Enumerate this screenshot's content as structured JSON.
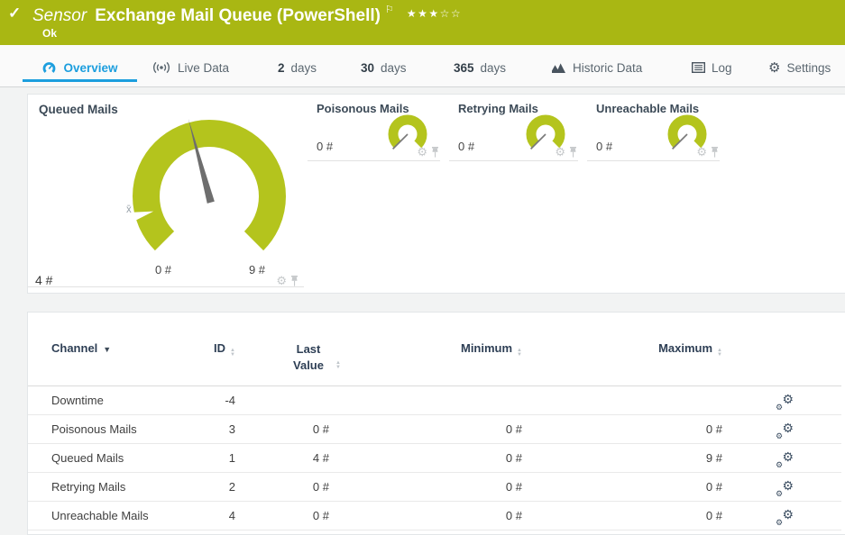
{
  "colors": {
    "brand_green": "#a9b713",
    "gauge_green": "#b4c41d",
    "active_blue": "#1c9ede",
    "header_navy": "#2e3f55"
  },
  "topbar": {
    "check_icon": "✓",
    "kind": "Sensor",
    "title": "Exchange Mail Queue (PowerShell)",
    "flag_icon": "⚐",
    "stars_filled": "★★★",
    "stars_empty": "☆☆",
    "status": "Ok"
  },
  "tabs": {
    "overview": {
      "label": "Overview"
    },
    "live": {
      "label": "Live Data"
    },
    "d2": {
      "num": "2",
      "unit": "days"
    },
    "d30": {
      "num": "30",
      "unit": "days"
    },
    "d365": {
      "num": "365",
      "unit": "days"
    },
    "historic": {
      "label": "Historic Data"
    },
    "log": {
      "label": "Log"
    },
    "settings": {
      "label": "Settings"
    }
  },
  "gauges": {
    "primary": {
      "title": "Queued Mails",
      "current": "4 #",
      "value_num": 4,
      "min": 0,
      "max": 9,
      "min_label": "0 #",
      "max_label": "9 #",
      "avg_label": "x̄"
    },
    "secondary": [
      {
        "title": "Poisonous Mails",
        "current": "0 #"
      },
      {
        "title": "Retrying Mails",
        "current": "0 #"
      },
      {
        "title": "Unreachable Mails",
        "current": "0 #"
      }
    ]
  },
  "table": {
    "columns": {
      "channel": "Channel",
      "id": "ID",
      "last": "Last Value",
      "min": "Minimum",
      "max": "Maximum"
    },
    "rows": [
      {
        "channel": "Downtime",
        "id": "-4",
        "last": "",
        "min": "",
        "max": ""
      },
      {
        "channel": "Poisonous Mails",
        "id": "3",
        "last": "0 #",
        "min": "0 #",
        "max": "0 #"
      },
      {
        "channel": "Queued Mails",
        "id": "1",
        "last": "4 #",
        "min": "0 #",
        "max": "9 #"
      },
      {
        "channel": "Retrying Mails",
        "id": "2",
        "last": "0 #",
        "min": "0 #",
        "max": "0 #"
      },
      {
        "channel": "Unreachable Mails",
        "id": "4",
        "last": "0 #",
        "min": "0 #",
        "max": "0 #"
      }
    ]
  },
  "icons": {
    "gear": "⚙"
  }
}
